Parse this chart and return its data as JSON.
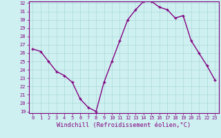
{
  "x": [
    0,
    1,
    2,
    3,
    4,
    5,
    6,
    7,
    8,
    9,
    10,
    11,
    12,
    13,
    14,
    15,
    16,
    17,
    18,
    19,
    20,
    21,
    22,
    23
  ],
  "y": [
    26.5,
    26.2,
    25.0,
    23.8,
    23.3,
    22.5,
    20.5,
    19.5,
    19.0,
    22.5,
    25.0,
    27.5,
    30.0,
    31.2,
    32.2,
    32.2,
    31.5,
    31.2,
    30.2,
    30.5,
    27.5,
    26.0,
    24.5,
    22.8
  ],
  "line_color": "#800080",
  "marker": "+",
  "marker_size": 3.5,
  "bg_color": "#cff0f0",
  "grid_color": "#aad8d8",
  "xlabel": "Windchill (Refroidissement éolien,°C)",
  "ylim": [
    19,
    32
  ],
  "xlim": [
    -0.5,
    23.5
  ],
  "yticks": [
    19,
    20,
    21,
    22,
    23,
    24,
    25,
    26,
    27,
    28,
    29,
    30,
    31,
    32
  ],
  "xticks": [
    0,
    1,
    2,
    3,
    4,
    5,
    6,
    7,
    8,
    9,
    10,
    11,
    12,
    13,
    14,
    15,
    16,
    17,
    18,
    19,
    20,
    21,
    22,
    23
  ],
  "tick_color": "#800080",
  "label_color": "#800080",
  "axis_color": "#800080",
  "linewidth": 1.0,
  "tick_fontsize": 5.0,
  "xlabel_fontsize": 6.2
}
